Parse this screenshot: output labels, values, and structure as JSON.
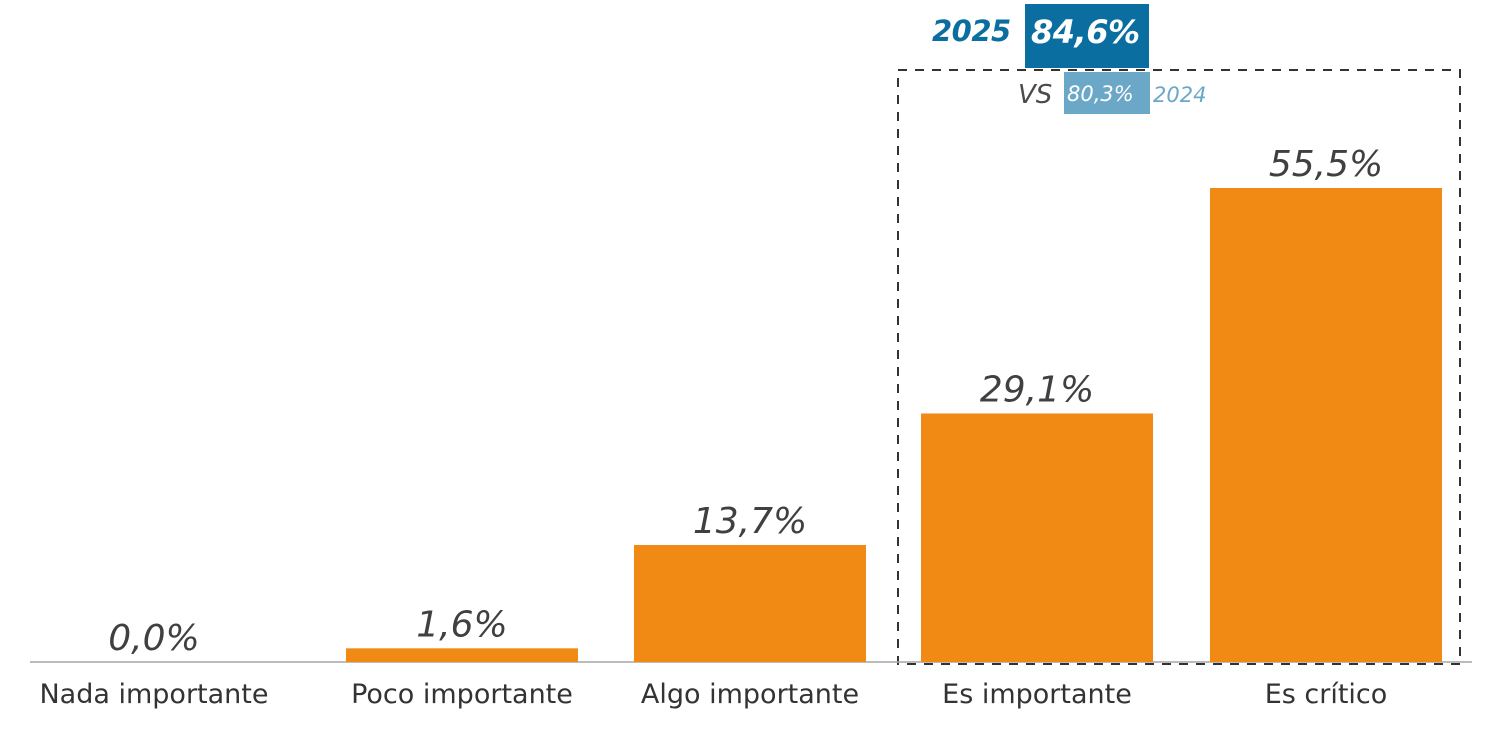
{
  "chart_data": {
    "type": "bar",
    "categories": [
      "Nada importante",
      "Poco importante",
      "Algo importante",
      "Es importante",
      "Es crítico"
    ],
    "values": [
      0.0,
      1.6,
      13.7,
      29.1,
      55.5
    ],
    "value_labels": [
      "0,0%",
      "1,6%",
      "13,7%",
      "29,1%",
      "55,5%"
    ],
    "ylim": [
      0,
      60
    ],
    "grid": false,
    "bar_color": "#f08a14",
    "highlight": {
      "categories": [
        "Es importante",
        "Es crítico"
      ],
      "year_current": "2025",
      "value_current": "84,6%",
      "vs_label": "VS",
      "value_previous": "80,3%",
      "year_previous": "2024",
      "color_current": "#0a6fa0",
      "color_previous": "#6ba7c7"
    }
  }
}
